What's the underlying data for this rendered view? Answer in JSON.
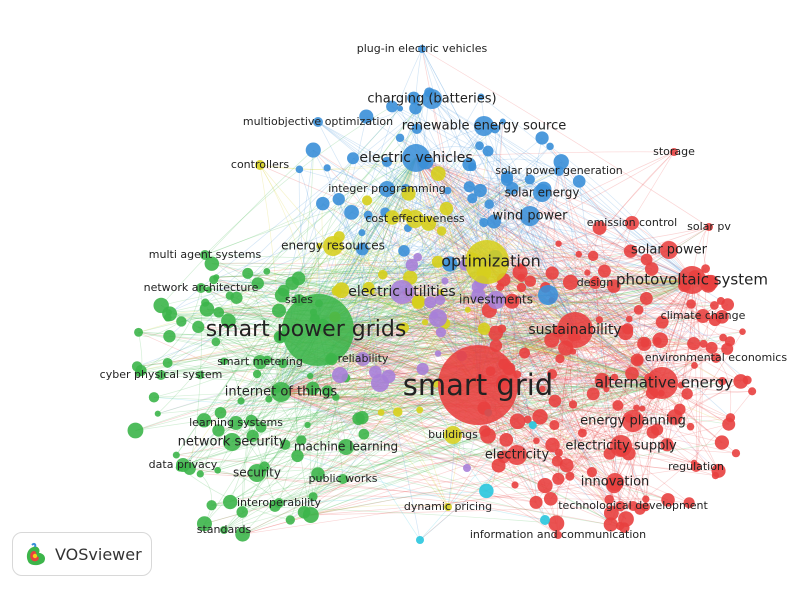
{
  "app": {
    "name": "VOSviewer"
  },
  "colors": {
    "red": "#e8403f",
    "green": "#3cb54a",
    "blue": "#3a8fd8",
    "yellow": "#d6cf1c",
    "purple": "#a77fd8",
    "cyan": "#29c6de"
  },
  "terms": [
    {
      "label": "smart grid",
      "cluster": "red"
    },
    {
      "label": "smart power grids",
      "cluster": "green"
    },
    {
      "label": "optimization",
      "cluster": "yellow"
    },
    {
      "label": "sustainability",
      "cluster": "red"
    },
    {
      "label": "alternative energy",
      "cluster": "red"
    },
    {
      "label": "photovoltaic system",
      "cluster": "red"
    },
    {
      "label": "electric vehicles",
      "cluster": "blue"
    },
    {
      "label": "electric utilities",
      "cluster": "purple"
    },
    {
      "label": "energy planning",
      "cluster": "red"
    },
    {
      "label": "electricity supply",
      "cluster": "red"
    },
    {
      "label": "charging (batteries)",
      "cluster": "blue"
    },
    {
      "label": "renewable energy source",
      "cluster": "blue"
    },
    {
      "label": "wind power",
      "cluster": "blue"
    },
    {
      "label": "solar energy",
      "cluster": "blue"
    },
    {
      "label": "solar power",
      "cluster": "red"
    },
    {
      "label": "internet of things",
      "cluster": "green"
    },
    {
      "label": "network security",
      "cluster": "green"
    },
    {
      "label": "security",
      "cluster": "green"
    },
    {
      "label": "electricity",
      "cluster": "red"
    },
    {
      "label": "innovation",
      "cluster": "red"
    },
    {
      "label": "energy resources",
      "cluster": "yellow"
    },
    {
      "label": "investments",
      "cluster": "purple"
    },
    {
      "label": "integer programming",
      "cluster": "blue"
    },
    {
      "label": "cost effectiveness",
      "cluster": "yellow"
    },
    {
      "label": "machine learning",
      "cluster": "green"
    },
    {
      "label": "buildings",
      "cluster": "yellow"
    },
    {
      "label": "data privacy",
      "cluster": "green"
    },
    {
      "label": "learning systems",
      "cluster": "green"
    },
    {
      "label": "smart metering",
      "cluster": "green"
    },
    {
      "label": "climate change",
      "cluster": "red"
    },
    {
      "label": "emission control",
      "cluster": "red"
    },
    {
      "label": "design",
      "cluster": "red"
    },
    {
      "label": "sales",
      "cluster": "green"
    },
    {
      "label": "reliability",
      "cluster": "purple"
    },
    {
      "label": "multi agent systems",
      "cluster": "green"
    },
    {
      "label": "network architecture",
      "cluster": "green"
    },
    {
      "label": "cyber physical system",
      "cluster": "green"
    },
    {
      "label": "multiobjective optimization",
      "cluster": "blue"
    },
    {
      "label": "controllers",
      "cluster": "yellow"
    },
    {
      "label": "plug-in electric vehicles",
      "cluster": "blue"
    },
    {
      "label": "solar power generation",
      "cluster": "blue"
    },
    {
      "label": "storage",
      "cluster": "red"
    },
    {
      "label": "solar pv",
      "cluster": "red"
    },
    {
      "label": "environmental economics",
      "cluster": "red"
    },
    {
      "label": "regulation",
      "cluster": "red"
    },
    {
      "label": "technological development",
      "cluster": "red"
    },
    {
      "label": "information and communication",
      "cluster": "red"
    },
    {
      "label": "dynamic pricing",
      "cluster": "yellow"
    },
    {
      "label": "public works",
      "cluster": "green"
    },
    {
      "label": "interoperability",
      "cluster": "green"
    },
    {
      "label": "standards",
      "cluster": "green"
    }
  ]
}
